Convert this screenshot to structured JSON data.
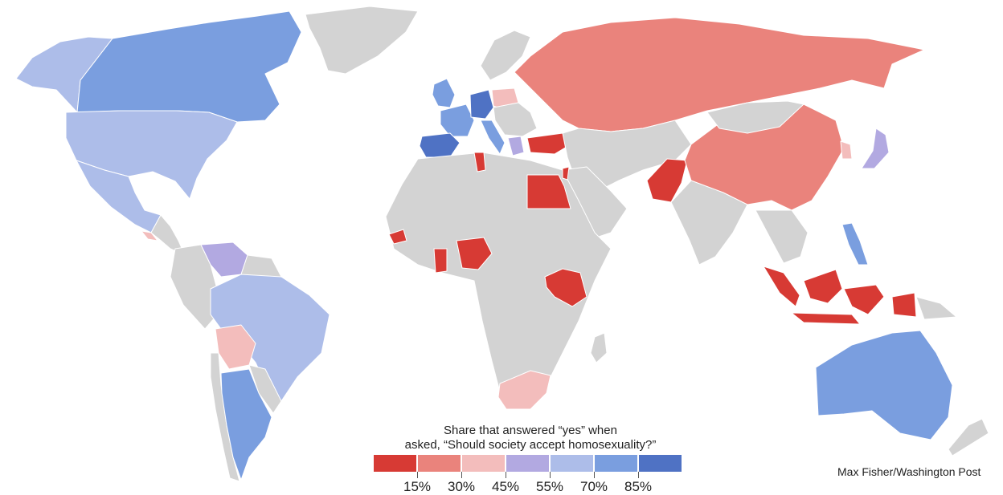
{
  "legend": {
    "title_line1": "Share that  answered “yes” when",
    "title_line2": "asked, “Should society accept homosexuality?”",
    "bins": [
      {
        "color": "#d73a34"
      },
      {
        "color": "#ea837c"
      },
      {
        "color": "#f3bdbc"
      },
      {
        "color": "#b2a9e1"
      },
      {
        "color": "#adbde9"
      },
      {
        "color": "#7a9edf"
      },
      {
        "color": "#4f72c4"
      }
    ],
    "ticks": [
      "15%",
      "30%",
      "45%",
      "55%",
      "70%",
      "85%"
    ]
  },
  "colors": {
    "no_data": "#d3d3d3",
    "border": "#ffffff"
  },
  "credit": "Max Fisher/Washington Post"
}
